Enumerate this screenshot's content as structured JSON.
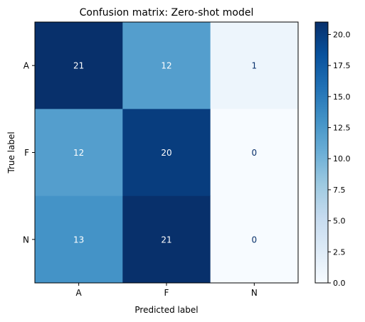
{
  "chart_data": {
    "type": "heatmap",
    "title": "Confusion matrix: Zero-shot model",
    "xlabel": "Predicted label",
    "ylabel": "True label",
    "x_categories": [
      "A",
      "F",
      "N"
    ],
    "y_categories": [
      "A",
      "F",
      "N"
    ],
    "values": [
      [
        21,
        12,
        1
      ],
      [
        12,
        20,
        0
      ],
      [
        13,
        21,
        0
      ]
    ],
    "colormap": "Blues",
    "colorbar": {
      "min": 0,
      "max": 21,
      "ticks": [
        0.0,
        2.5,
        5.0,
        7.5,
        10.0,
        12.5,
        15.0,
        17.5,
        20.0
      ],
      "tick_labels": [
        "0.0",
        "2.5",
        "5.0",
        "7.5",
        "10.0",
        "12.5",
        "15.0",
        "17.5",
        "20.0"
      ]
    },
    "grid": false
  }
}
